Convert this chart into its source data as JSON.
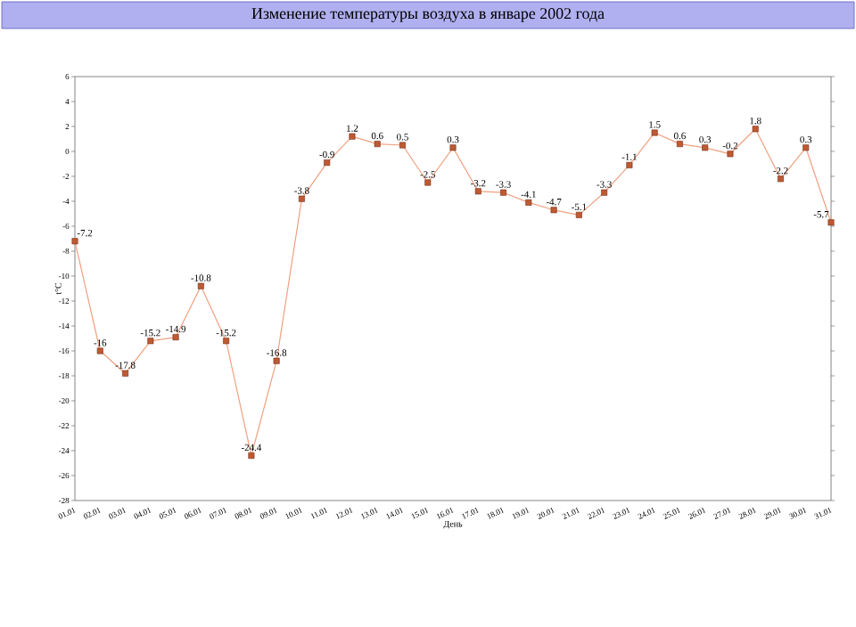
{
  "chart_data": {
    "type": "line",
    "title": "Изменение температуры воздуха в январе 2002 года",
    "xlabel": "День",
    "ylabel": "t°C",
    "categories": [
      "01.01",
      "02.01",
      "03.01",
      "04.01",
      "05.01",
      "06.01",
      "07.01",
      "08.01",
      "09.01",
      "10.01",
      "11.01",
      "12.01",
      "13.01",
      "14.01",
      "15.01",
      "16.01",
      "17.01",
      "18.01",
      "19.01",
      "20.01",
      "21.01",
      "22.01",
      "23.01",
      "24.01",
      "25.01",
      "26.01",
      "27.01",
      "28.01",
      "29.01",
      "30.01",
      "31.01"
    ],
    "series": [
      {
        "color": "#f0a080",
        "values": [
          -7.2,
          -16,
          -17.8,
          -15.2,
          -14.9,
          -10.8,
          -15.2,
          -24.4,
          -16.8,
          -3.8,
          -0.9,
          1.2,
          0.6,
          0.5,
          -2.5,
          0.3,
          -3.2,
          -3.3,
          -4.1,
          -4.7,
          -5.1,
          -3.3,
          -1.1,
          1.5,
          0.6,
          0.3,
          -0.2,
          1.8,
          -2.2,
          0.3,
          -5.7
        ]
      }
    ],
    "ylim": [
      -28,
      6
    ],
    "yticks": [
      -28,
      -26,
      -24,
      -22,
      -20,
      -18,
      -16,
      -14,
      -12,
      -10,
      -8,
      -6,
      -4,
      -2,
      0,
      2,
      4,
      6
    ],
    "marker": "square",
    "line_style": "solid",
    "data_labels": true,
    "grid": false
  }
}
